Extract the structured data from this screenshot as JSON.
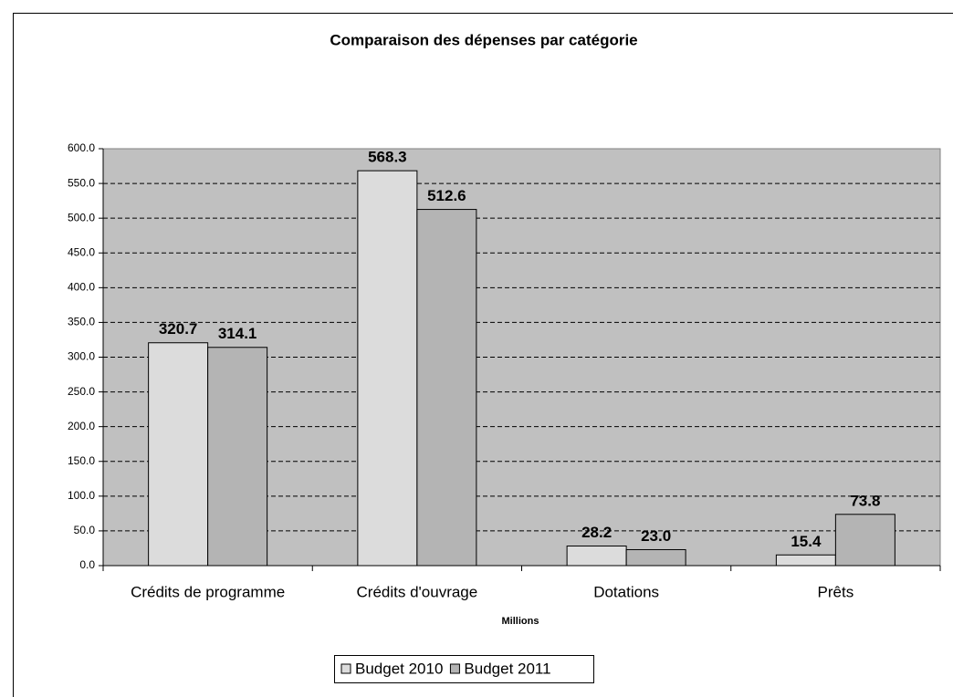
{
  "chart_data": {
    "type": "bar",
    "title": "Comparaison des dépenses par catégorie",
    "x_label": "Millions",
    "categories": [
      "Crédits de programme",
      "Crédits d'ouvrage",
      "Dotations",
      "Prêts"
    ],
    "series": [
      {
        "name": "Budget 2010",
        "color": "#dcdcdc",
        "values": [
          320.7,
          568.3,
          28.2,
          15.4
        ],
        "value_labels": [
          "320.7",
          "568.3",
          "28.2",
          "15.4"
        ]
      },
      {
        "name": "Budget 2011",
        "color": "#b4b4b4",
        "values": [
          314.1,
          512.6,
          23.0,
          73.8
        ],
        "value_labels": [
          "314.1",
          "512.6",
          "23.0",
          "73.8"
        ]
      }
    ],
    "ylim": [
      0,
      600
    ],
    "yticks": [
      {
        "value": 0,
        "label": "0.0"
      },
      {
        "value": 50,
        "label": "50.0"
      },
      {
        "value": 100,
        "label": "100.0"
      },
      {
        "value": 150,
        "label": "150.0"
      },
      {
        "value": 200,
        "label": "200.0"
      },
      {
        "value": 250,
        "label": "250.0"
      },
      {
        "value": 300,
        "label": "300.0"
      },
      {
        "value": 350,
        "label": "350.0"
      },
      {
        "value": 400,
        "label": "400.0"
      },
      {
        "value": 450,
        "label": "450.0"
      },
      {
        "value": 500,
        "label": "500.0"
      },
      {
        "value": 550,
        "label": "550.0"
      },
      {
        "value": 600,
        "label": "600.0"
      }
    ],
    "grid": true,
    "plot_background": "#c0c0c0",
    "legend": "bottom"
  }
}
